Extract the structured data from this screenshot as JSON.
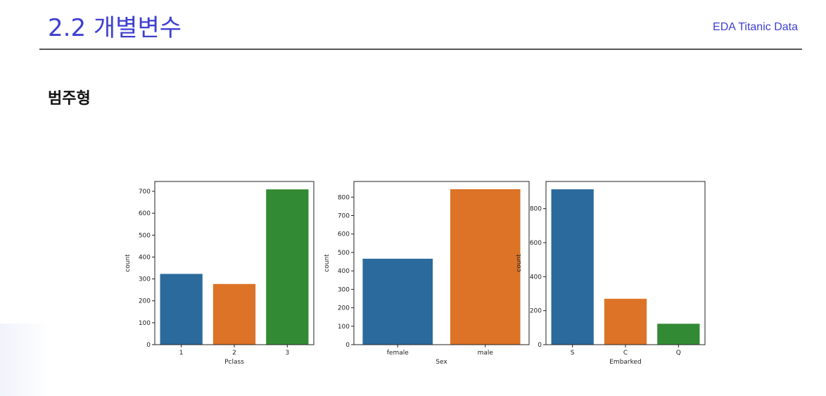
{
  "header": {
    "title": "2.2 개별변수",
    "right_label": "EDA Titanic Data"
  },
  "section": {
    "heading": "범주형"
  },
  "colors": {
    "title": "#3d3fd0",
    "series": [
      "#2b6a9c",
      "#dc7326",
      "#338a34"
    ]
  },
  "chart_data": [
    {
      "type": "bar",
      "categories": [
        "1",
        "2",
        "3"
      ],
      "values": [
        323,
        277,
        709
      ],
      "xlabel": "Pclass",
      "ylabel": "count",
      "ylim": [
        0,
        745
      ],
      "yticks": [
        0,
        100,
        200,
        300,
        400,
        500,
        600,
        700
      ]
    },
    {
      "type": "bar",
      "categories": [
        "female",
        "male"
      ],
      "values": [
        466,
        843
      ],
      "xlabel": "Sex",
      "ylabel": "count",
      "ylim": [
        0,
        885
      ],
      "yticks": [
        0,
        100,
        200,
        300,
        400,
        500,
        600,
        700,
        800
      ]
    },
    {
      "type": "bar",
      "categories": [
        "S",
        "C",
        "Q"
      ],
      "values": [
        914,
        270,
        123
      ],
      "xlabel": "Embarked",
      "ylabel": "count",
      "ylim": [
        0,
        960
      ],
      "yticks": [
        0,
        200,
        400,
        600,
        800
      ]
    }
  ]
}
